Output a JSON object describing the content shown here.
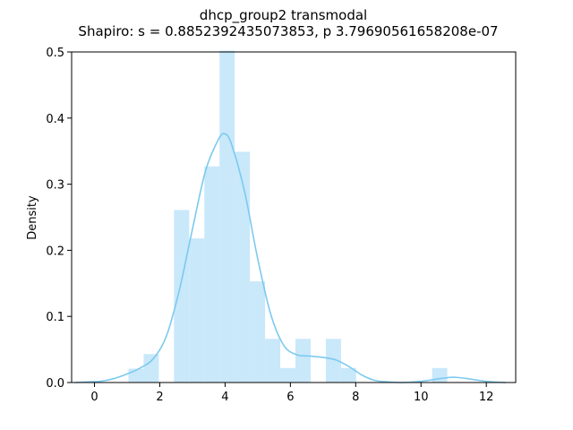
{
  "chart_data": {
    "type": "bar",
    "title": "dhcp_group2 transmodal",
    "subtitle": "Shapiro: s = 0.8852392435073853, p 3.79690561658208e-07",
    "xlabel": "",
    "ylabel": "Density",
    "xlim": [
      -0.7,
      12.9
    ],
    "ylim": [
      0,
      0.5
    ],
    "x_ticks": [
      0,
      2,
      4,
      6,
      8,
      10,
      12
    ],
    "y_ticks": [
      0.0,
      0.1,
      0.2,
      0.3,
      0.4,
      0.5
    ],
    "x_tick_labels": [
      "0",
      "2",
      "4",
      "6",
      "8",
      "10",
      "12"
    ],
    "y_tick_labels": [
      "0.0",
      "0.1",
      "0.2",
      "0.3",
      "0.4",
      "0.5"
    ],
    "grid": false,
    "legend": false,
    "bar_color": "#c9e8fa",
    "line_color": "#7ccaef",
    "histogram": {
      "bin_edges": [
        1.04,
        1.505,
        1.97,
        2.435,
        2.9,
        3.365,
        3.83,
        4.295,
        4.76,
        5.225,
        5.69,
        6.155,
        6.62,
        7.085,
        7.55,
        8.015,
        8.48,
        8.945,
        9.41,
        9.875,
        10.34,
        10.805
      ],
      "densities": [
        0.021,
        0.043,
        0.0,
        0.261,
        0.218,
        0.327,
        0.502,
        0.349,
        0.153,
        0.066,
        0.022,
        0.066,
        0.0,
        0.066,
        0.022,
        0.0,
        0.0,
        0.0,
        0.0,
        0.0,
        0.022
      ]
    },
    "kde": {
      "x": [
        -0.6,
        -0.2,
        0.2,
        0.6,
        1.0,
        1.4,
        1.8,
        2.2,
        2.6,
        3.0,
        3.4,
        3.8,
        4.0,
        4.2,
        4.6,
        5.0,
        5.4,
        5.8,
        6.2,
        6.6,
        7.0,
        7.4,
        7.8,
        8.2,
        8.6,
        9.0,
        9.4,
        9.8,
        10.2,
        10.6,
        11.0,
        11.4,
        11.8,
        12.2,
        12.6
      ],
      "y": [
        0.0,
        0.001,
        0.002,
        0.006,
        0.013,
        0.022,
        0.036,
        0.07,
        0.14,
        0.232,
        0.32,
        0.368,
        0.376,
        0.36,
        0.288,
        0.187,
        0.103,
        0.056,
        0.042,
        0.04,
        0.038,
        0.034,
        0.024,
        0.011,
        0.003,
        0.001,
        0.0,
        0.001,
        0.003,
        0.006,
        0.008,
        0.006,
        0.003,
        0.001,
        0.0
      ]
    }
  }
}
